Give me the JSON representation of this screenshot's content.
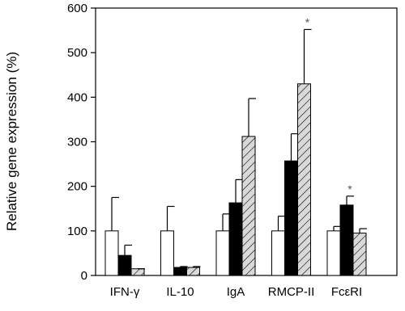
{
  "chart_data": {
    "type": "bar",
    "y_label": "Relative gene expression (%)",
    "categories": [
      "IFN-γ",
      "IL-10",
      "IgA",
      "RMCP-II",
      "FcεRI"
    ],
    "series": [
      {
        "color": "#ffffff",
        "values": [
          100,
          100,
          100,
          100,
          100
        ],
        "errors": [
          75,
          55,
          38,
          33,
          10
        ]
      },
      {
        "color": "#000000",
        "values": [
          45,
          18,
          163,
          257,
          158
        ],
        "errors": [
          23,
          2,
          52,
          61,
          20
        ],
        "labels": [
          null,
          null,
          null,
          null,
          "*"
        ]
      },
      {
        "color": "#d9d9d9",
        "hatch": true,
        "values": [
          15,
          18,
          312,
          430,
          95
        ],
        "errors": [
          0,
          2,
          85,
          122,
          10
        ],
        "labels": [
          null,
          null,
          null,
          "*",
          null
        ]
      }
    ],
    "ylim": [
      0,
      600
    ],
    "yticks": [
      0,
      100,
      200,
      300,
      400,
      500,
      600
    ]
  }
}
